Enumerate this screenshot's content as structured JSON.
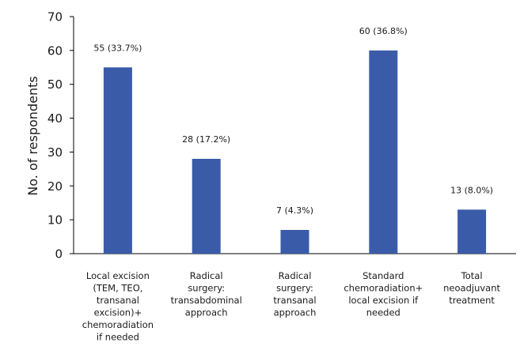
{
  "chart_data": {
    "type": "bar",
    "title": "",
    "xlabel": "",
    "ylabel": "No. of respondents",
    "ylim": [
      0,
      70
    ],
    "yticks": [
      0,
      10,
      20,
      30,
      40,
      50,
      60,
      70
    ],
    "grid": false,
    "bar_color": "#3a5ca8",
    "categories": [
      [
        "Local excision",
        "(TEM, TEO,",
        "transanal",
        "excision)+",
        "chemoradiation",
        "if needed"
      ],
      [
        "Radical",
        "surgery:",
        "transabdominal",
        "approach"
      ],
      [
        "Radical",
        "surgery:",
        "transanal",
        "approach"
      ],
      [
        "Standard",
        "chemoradiation+",
        "local excision if",
        "needed"
      ],
      [
        "Total",
        "neoadjuvant",
        "treatment"
      ]
    ],
    "values": [
      55,
      28,
      7,
      60,
      13
    ],
    "data_labels": [
      "55 (33.7%)",
      "28 (17.2%)",
      "7 (4.3%)",
      "60 (36.8%)",
      "13 (8.0%)"
    ]
  }
}
